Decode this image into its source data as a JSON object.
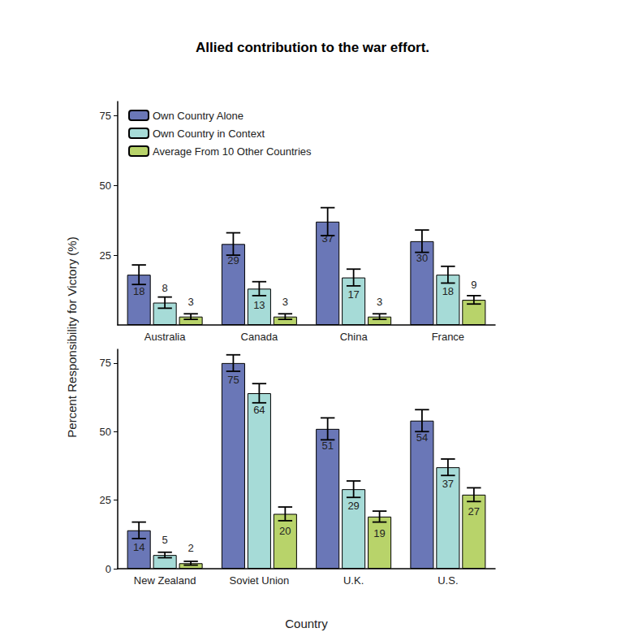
{
  "chart_data": [
    {
      "type": "bar",
      "title": "Allied contribution to the war effort.",
      "categories": [
        "Australia",
        "Canada",
        "China",
        "France"
      ],
      "series": [
        {
          "name": "Own Country Alone",
          "color": "#6a77b7",
          "values": [
            18,
            29,
            37,
            30
          ],
          "errors": [
            3.5,
            4,
            5,
            4
          ]
        },
        {
          "name": "Own Country in Context",
          "color": "#a6dbd7",
          "values": [
            8,
            13,
            17,
            18
          ],
          "errors": [
            2,
            2.5,
            3,
            3
          ]
        },
        {
          "name": "Average From 10 Other Countries",
          "color": "#b8d36a",
          "values": [
            3,
            3,
            3,
            9
          ],
          "errors": [
            1,
            1,
            1,
            1.5
          ]
        }
      ],
      "ylim": [
        0,
        80
      ],
      "yticks": [
        25,
        50,
        75
      ],
      "y_label": "Percent Responsibility for Victory (%)",
      "legend": "upper left",
      "data_labels": true,
      "grid": false
    },
    {
      "type": "bar",
      "categories": [
        "New Zealand",
        "Soviet Union",
        "U.K.",
        "U.S."
      ],
      "series": [
        {
          "name": "Own Country Alone",
          "color": "#6a77b7",
          "values": [
            14,
            75,
            51,
            54
          ],
          "errors": [
            3,
            3,
            4,
            4
          ]
        },
        {
          "name": "Own Country in Context",
          "color": "#a6dbd7",
          "values": [
            5,
            64,
            29,
            37
          ],
          "errors": [
            1,
            3.5,
            3,
            3
          ]
        },
        {
          "name": "Average From 10 Other Countries",
          "color": "#b8d36a",
          "values": [
            2,
            20,
            19,
            27
          ],
          "errors": [
            0.7,
            2.5,
            2,
            2.5
          ]
        }
      ],
      "ylim": [
        0,
        80
      ],
      "yticks": [
        0,
        25,
        50,
        75
      ],
      "x_label": "Country",
      "data_labels": true,
      "grid": false
    }
  ]
}
